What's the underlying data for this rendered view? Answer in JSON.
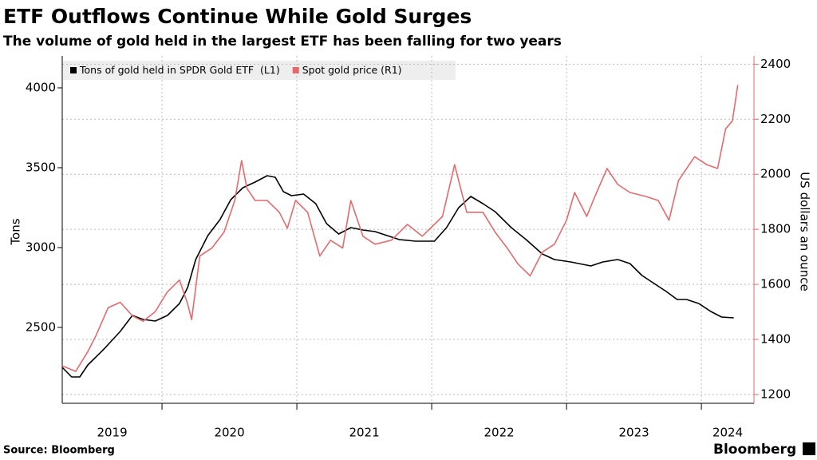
{
  "chart_data": {
    "type": "line",
    "title": "ETF Outflows Continue While Gold Surges",
    "subtitle": "The volume of gold held in the largest ETF has been falling for two years",
    "y_label": "Tons",
    "y2_label": "US dollars an ounce",
    "source": "Source: Bloomberg",
    "logo": "Bloomberg",
    "legend": "top-left",
    "grid": true,
    "xlim": [
      2019.26,
      2024.39
    ],
    "xticks": [
      {
        "value": 2019,
        "label": "2019"
      },
      {
        "value": 2020,
        "label": "2020"
      },
      {
        "value": 2021,
        "label": "2021"
      },
      {
        "value": 2022,
        "label": "2022"
      },
      {
        "value": 2023,
        "label": "2023"
      },
      {
        "value": 2024,
        "label": "2024"
      }
    ],
    "ylim": [
      2025,
      4200
    ],
    "yticks": [
      2500,
      3000,
      3500,
      4000
    ],
    "y2lim": [
      1168,
      2430
    ],
    "y2ticks": [
      1200,
      1400,
      1600,
      1800,
      2000,
      2200,
      2400
    ],
    "series": [
      {
        "name": "Tons of gold held in SPDR Gold ETF  (L1)",
        "color": "#000000",
        "x": [
          2019.26,
          2019.33,
          2019.39,
          2019.45,
          2019.57,
          2019.69,
          2019.78,
          2019.86,
          2019.95,
          2020.04,
          2020.13,
          2020.19,
          2020.25,
          2020.34,
          2020.43,
          2020.51,
          2020.6,
          2020.69,
          2020.78,
          2020.84,
          2020.9,
          2020.96,
          2021.05,
          2021.14,
          2021.22,
          2021.31,
          2021.4,
          2021.49,
          2021.58,
          2021.67,
          2021.76,
          2021.88,
          2022.02,
          2022.11,
          2022.2,
          2022.29,
          2022.38,
          2022.47,
          2022.59,
          2022.7,
          2022.82,
          2022.91,
          2023.03,
          2023.18,
          2023.27,
          2023.38,
          2023.47,
          2023.56,
          2023.65,
          2023.74,
          2023.82,
          2023.89,
          2023.98,
          2024.07,
          2024.15,
          2024.24
        ],
        "values": [
          2250,
          2190,
          2190,
          2265,
          2365,
          2475,
          2575,
          2550,
          2540,
          2575,
          2650,
          2750,
          2925,
          3075,
          3175,
          3300,
          3375,
          3410,
          3450,
          3440,
          3350,
          3325,
          3335,
          3275,
          3150,
          3085,
          3125,
          3110,
          3100,
          3075,
          3050,
          3040,
          3040,
          3125,
          3250,
          3320,
          3275,
          3225,
          3125,
          3050,
          2960,
          2925,
          2910,
          2885,
          2910,
          2925,
          2900,
          2825,
          2775,
          2725,
          2675,
          2675,
          2650,
          2600,
          2565,
          2560
        ]
      },
      {
        "name": "Spot gold price (R1)",
        "color": "#e8696b",
        "axis": "y2",
        "x": [
          2019.26,
          2019.36,
          2019.45,
          2019.51,
          2019.6,
          2019.69,
          2019.78,
          2019.86,
          2019.95,
          2020.04,
          2020.13,
          2020.19,
          2020.22,
          2020.28,
          2020.37,
          2020.46,
          2020.54,
          2020.59,
          2020.63,
          2020.69,
          2020.78,
          2020.87,
          2020.93,
          2020.99,
          2021.08,
          2021.17,
          2021.25,
          2021.34,
          2021.4,
          2021.49,
          2021.58,
          2021.7,
          2021.82,
          2021.93,
          2022.08,
          2022.17,
          2022.26,
          2022.38,
          2022.47,
          2022.56,
          2022.64,
          2022.73,
          2022.82,
          2022.91,
          2023.0,
          2023.06,
          2023.15,
          2023.21,
          2023.3,
          2023.38,
          2023.47,
          2023.59,
          2023.68,
          2023.76,
          2023.83,
          2023.95,
          2024.04,
          2024.12,
          2024.18,
          2024.23,
          2024.27
        ],
        "values": [
          1304,
          1284,
          1356,
          1414,
          1515,
          1535,
          1486,
          1466,
          1501,
          1573,
          1616,
          1529,
          1472,
          1703,
          1732,
          1790,
          1905,
          2050,
          1949,
          1905,
          1905,
          1862,
          1804,
          1905,
          1862,
          1703,
          1760,
          1732,
          1905,
          1775,
          1746,
          1760,
          1818,
          1775,
          1847,
          2035,
          1862,
          1862,
          1790,
          1732,
          1674,
          1631,
          1717,
          1746,
          1833,
          1934,
          1847,
          1919,
          2021,
          1963,
          1934,
          1919,
          1905,
          1833,
          1977,
          2064,
          2035,
          2021,
          2165,
          2194,
          2324
        ]
      }
    ]
  }
}
